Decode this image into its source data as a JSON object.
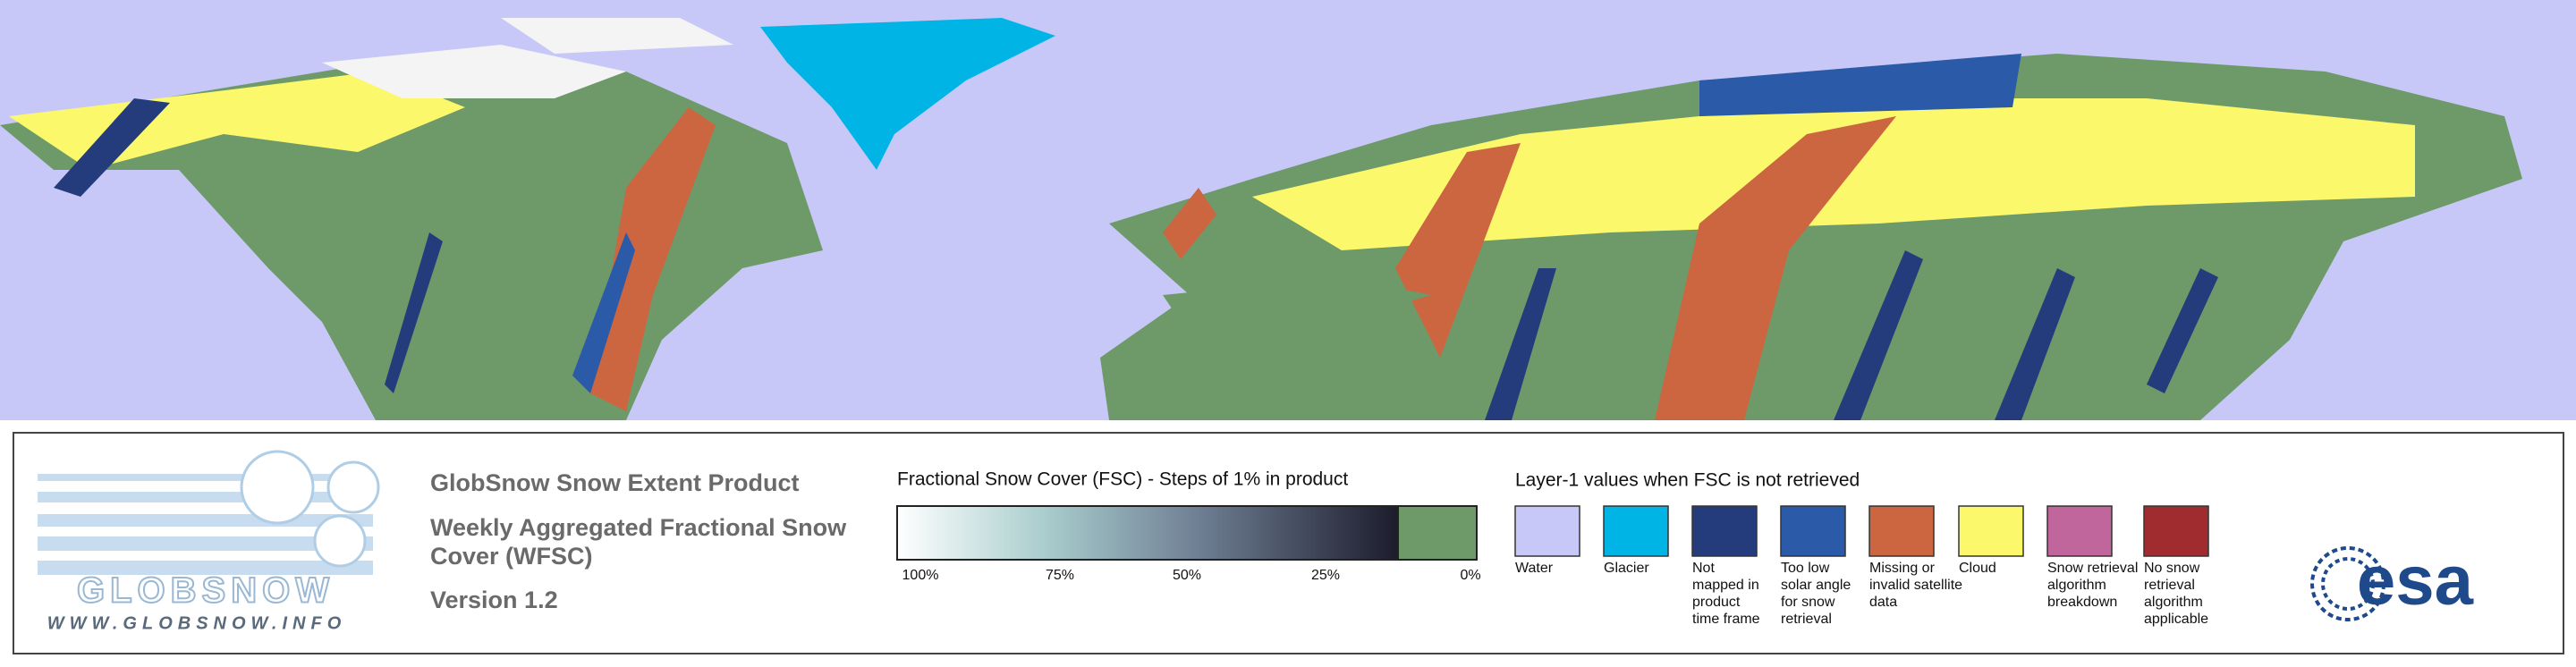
{
  "header": {
    "title": "GlobSnow Snow Extent Product",
    "subtitle_lines": [
      "Weekly Aggregated Fractional Snow",
      "Cover (WFSC)"
    ],
    "version": "Version 1.2"
  },
  "logo": {
    "name": "GLOBSNOW",
    "url": "WWW.GLOBSNOW.INFO",
    "agency": "esa"
  },
  "fsc_legend": {
    "title": "Fractional Snow Cover (FSC) - Steps of 1% in product",
    "tick_labels": [
      "100%",
      "75%",
      "50%",
      "25%",
      "0%"
    ]
  },
  "layer1_legend": {
    "title": "Layer-1 values when FSC is not retrieved",
    "items": [
      {
        "color": "#c8c8f8",
        "lines": [
          "Water"
        ]
      },
      {
        "color": "#00b4e6",
        "lines": [
          "Glacier"
        ]
      },
      {
        "color": "#243c7c",
        "lines": [
          "Not",
          "mapped in",
          "product",
          "time frame"
        ]
      },
      {
        "color": "#2a5aa8",
        "lines": [
          "Too low",
          "solar angle",
          "for snow",
          "retrieval"
        ]
      },
      {
        "color": "#cc6640",
        "lines": [
          "Missing or",
          "invalid satellite",
          "data"
        ]
      },
      {
        "color": "#fcf86c",
        "lines": [
          "Cloud"
        ]
      },
      {
        "color": "#c0669c",
        "lines": [
          "Snow retrieval",
          "algorithm",
          "breakdown"
        ]
      },
      {
        "color": "#a02c30",
        "lines": [
          "No snow",
          "retrieval",
          "algorithm",
          "applicable"
        ]
      }
    ]
  }
}
